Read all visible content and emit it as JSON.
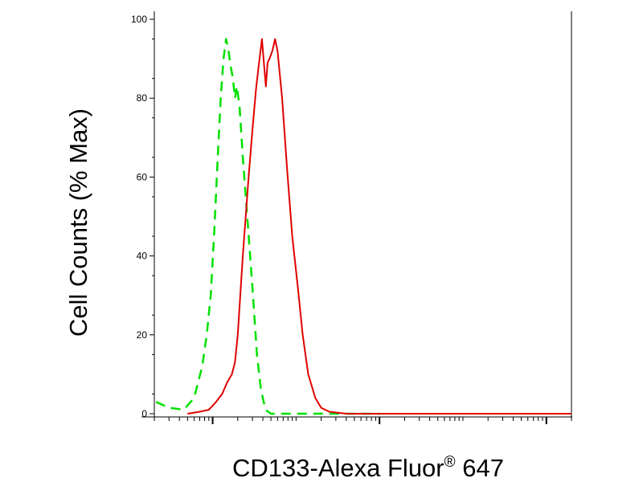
{
  "chart_data": {
    "type": "line",
    "xlabel": "CD133-Alexa Fluor® 647",
    "xlabel_main": "CD133-Alexa Fluor",
    "xlabel_sup": "®",
    "xlabel_tail": " 647",
    "ylabel": "Cell Counts (% Max)",
    "ylim": [
      0,
      100
    ],
    "y_ticks": [
      0,
      20,
      40,
      60,
      80,
      100
    ],
    "y_tick_labels": [
      "0",
      "20",
      "40",
      "60",
      "80",
      "100"
    ],
    "x_scale": "log",
    "xlim": [
      0.2,
      20000
    ],
    "x_major_ticks": [
      1,
      100,
      10000
    ],
    "grid": false,
    "series": [
      {
        "color": "#00e000",
        "line_style": "dashed",
        "points": [
          [
            0.21,
            3
          ],
          [
            0.3,
            1.5
          ],
          [
            0.45,
            1
          ],
          [
            0.6,
            4
          ],
          [
            0.75,
            12
          ],
          [
            0.85,
            20
          ],
          [
            0.95,
            30
          ],
          [
            1.05,
            47
          ],
          [
            1.15,
            65
          ],
          [
            1.25,
            80
          ],
          [
            1.35,
            90
          ],
          [
            1.45,
            95
          ],
          [
            1.55,
            92
          ],
          [
            1.65,
            88
          ],
          [
            1.75,
            85
          ],
          [
            1.85,
            80
          ],
          [
            1.95,
            83
          ],
          [
            2.1,
            78
          ],
          [
            2.3,
            65
          ],
          [
            2.6,
            50
          ],
          [
            3.0,
            32
          ],
          [
            3.4,
            15
          ],
          [
            3.8,
            6
          ],
          [
            4.3,
            1
          ],
          [
            5,
            0
          ],
          [
            100,
            0
          ]
        ]
      },
      {
        "color": "#e00000",
        "line_style": "solid",
        "points": [
          [
            0.5,
            0
          ],
          [
            0.7,
            0.5
          ],
          [
            0.9,
            1
          ],
          [
            1.1,
            3
          ],
          [
            1.3,
            5
          ],
          [
            1.5,
            8
          ],
          [
            1.7,
            10
          ],
          [
            1.85,
            13
          ],
          [
            2.0,
            20
          ],
          [
            2.3,
            40
          ],
          [
            2.7,
            60
          ],
          [
            3.0,
            72
          ],
          [
            3.3,
            82
          ],
          [
            3.6,
            89
          ],
          [
            3.9,
            95
          ],
          [
            4.15,
            88
          ],
          [
            4.35,
            83
          ],
          [
            4.55,
            89
          ],
          [
            4.8,
            90
          ],
          [
            5.2,
            92
          ],
          [
            5.6,
            95
          ],
          [
            6.0,
            92
          ],
          [
            6.8,
            80
          ],
          [
            7.8,
            62
          ],
          [
            9,
            45
          ],
          [
            10.5,
            32
          ],
          [
            12,
            20
          ],
          [
            14,
            10
          ],
          [
            17,
            4
          ],
          [
            20,
            1.5
          ],
          [
            25,
            0.5
          ],
          [
            40,
            0
          ],
          [
            20000,
            0
          ]
        ]
      }
    ]
  }
}
